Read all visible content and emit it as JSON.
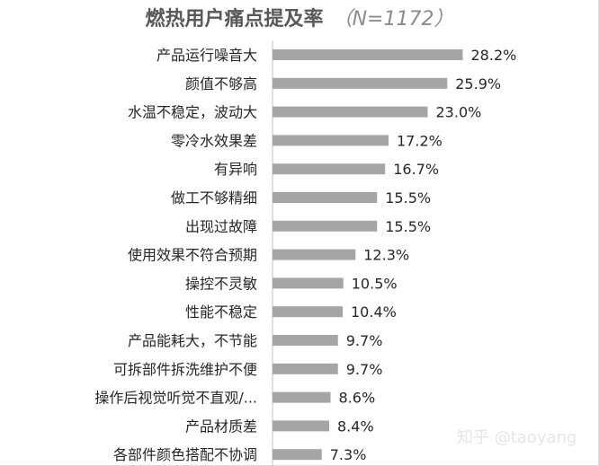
{
  "chart_data": {
    "type": "bar",
    "orientation": "horizontal",
    "title": "燃热用户痛点提及率",
    "subtitle": "（N=1172）",
    "categories": [
      "产品运行噪音大",
      "颜值不够高",
      "水温不稳定，波动大",
      "零冷水效果差",
      "有异响",
      "做工不够精细",
      "出现过故障",
      "使用效果不符合预期",
      "操控不灵敏",
      "性能不稳定",
      "产品能耗大，不节能",
      "可拆部件拆洗维护不便",
      "操作后视觉听觉不直观/...",
      "产品材质差",
      "各部件颜色搭配不协调"
    ],
    "values": [
      28.2,
      25.9,
      23.0,
      17.2,
      16.7,
      15.5,
      15.5,
      12.3,
      10.5,
      10.4,
      9.7,
      9.7,
      8.6,
      8.4,
      7.3
    ],
    "value_labels": [
      "28.2%",
      "25.9%",
      "23.0%",
      "17.2%",
      "16.7%",
      "15.5%",
      "15.5%",
      "12.3%",
      "10.5%",
      "10.4%",
      "9.7%",
      "9.7%",
      "8.6%",
      "8.4%",
      "7.3%"
    ],
    "bar_color": "#a5a5a5",
    "grid": false,
    "legend": "none"
  },
  "watermark": "知乎 @taoyang"
}
